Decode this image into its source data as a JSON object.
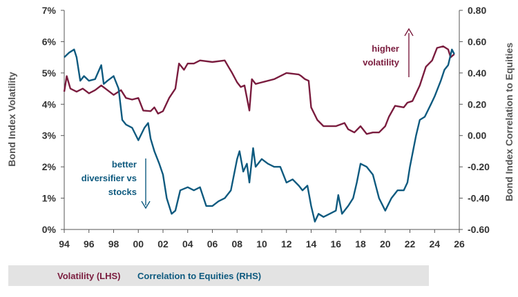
{
  "chart_data": {
    "type": "line",
    "xlabel": "",
    "ylabel_left": "Bond Index Volatility",
    "ylabel_right": "Bond Index Correlation to Equities",
    "x_ticks": [
      "94",
      "96",
      "98",
      "00",
      "02",
      "04",
      "06",
      "08",
      "10",
      "12",
      "14",
      "16",
      "18",
      "20",
      "22",
      "24",
      "26"
    ],
    "xlim": [
      1994,
      2026
    ],
    "y_left_ticks": [
      "0%",
      "1%",
      "2%",
      "3%",
      "4%",
      "5%",
      "6%",
      "7%"
    ],
    "ylim_left": [
      0,
      7
    ],
    "y_right_ticks": [
      "-0.60",
      "-0.40",
      "-0.20",
      "0.00",
      "0.20",
      "0.40",
      "0.60",
      "0.80"
    ],
    "ylim_right": [
      -0.6,
      0.8
    ],
    "grid": false,
    "series": [
      {
        "name": "Volatility (LHS)",
        "axis": "left",
        "color": "#7a1c3e",
        "points": [
          [
            1994.0,
            4.4
          ],
          [
            1994.2,
            4.9
          ],
          [
            1994.5,
            4.5
          ],
          [
            1995.0,
            4.4
          ],
          [
            1995.5,
            4.5
          ],
          [
            1996.0,
            4.35
          ],
          [
            1996.5,
            4.45
          ],
          [
            1997.0,
            4.6
          ],
          [
            1997.5,
            4.45
          ],
          [
            1998.0,
            4.3
          ],
          [
            1998.6,
            4.45
          ],
          [
            1999.0,
            4.2
          ],
          [
            1999.5,
            4.15
          ],
          [
            2000.0,
            4.2
          ],
          [
            2000.4,
            3.8
          ],
          [
            2001.0,
            3.78
          ],
          [
            2001.3,
            3.9
          ],
          [
            2001.6,
            3.7
          ],
          [
            2002.0,
            3.78
          ],
          [
            2002.5,
            4.2
          ],
          [
            2003.0,
            4.5
          ],
          [
            2003.3,
            5.3
          ],
          [
            2003.7,
            5.1
          ],
          [
            2004.0,
            5.3
          ],
          [
            2004.5,
            5.3
          ],
          [
            2005.0,
            5.4
          ],
          [
            2006.0,
            5.35
          ],
          [
            2007.0,
            5.4
          ],
          [
            2007.3,
            5.2
          ],
          [
            2007.6,
            5.0
          ],
          [
            2008.0,
            4.7
          ],
          [
            2008.3,
            4.55
          ],
          [
            2008.6,
            4.6
          ],
          [
            2009.0,
            3.8
          ],
          [
            2009.2,
            4.8
          ],
          [
            2009.5,
            4.65
          ],
          [
            2010.0,
            4.7
          ],
          [
            2011.0,
            4.8
          ],
          [
            2011.5,
            4.9
          ],
          [
            2012.0,
            5.0
          ],
          [
            2013.0,
            4.95
          ],
          [
            2013.2,
            4.9
          ],
          [
            2013.5,
            4.8
          ],
          [
            2013.8,
            4.75
          ],
          [
            2014.0,
            3.9
          ],
          [
            2014.5,
            3.5
          ],
          [
            2015.0,
            3.3
          ],
          [
            2016.0,
            3.3
          ],
          [
            2016.7,
            3.4
          ],
          [
            2017.0,
            3.2
          ],
          [
            2017.5,
            3.1
          ],
          [
            2018.0,
            3.3
          ],
          [
            2018.5,
            3.05
          ],
          [
            2019.0,
            3.1
          ],
          [
            2019.5,
            3.1
          ],
          [
            2020.0,
            3.3
          ],
          [
            2020.3,
            3.6
          ],
          [
            2020.8,
            3.95
          ],
          [
            2021.5,
            3.9
          ],
          [
            2021.8,
            4.05
          ],
          [
            2022.2,
            4.1
          ],
          [
            2022.8,
            4.6
          ],
          [
            2023.3,
            5.2
          ],
          [
            2023.8,
            5.4
          ],
          [
            2024.2,
            5.8
          ],
          [
            2024.7,
            5.85
          ],
          [
            2025.1,
            5.75
          ],
          [
            2025.3,
            5.5
          ],
          [
            2025.6,
            5.6
          ]
        ]
      },
      {
        "name": "Correlation to Equities (RHS)",
        "axis": "right",
        "color": "#0e5a7f",
        "points": [
          [
            1994.0,
            0.5
          ],
          [
            1994.4,
            0.53
          ],
          [
            1994.8,
            0.55
          ],
          [
            1995.0,
            0.5
          ],
          [
            1995.3,
            0.35
          ],
          [
            1995.6,
            0.38
          ],
          [
            1996.0,
            0.35
          ],
          [
            1996.5,
            0.36
          ],
          [
            1997.0,
            0.45
          ],
          [
            1997.2,
            0.33
          ],
          [
            1997.5,
            0.35
          ],
          [
            1998.0,
            0.38
          ],
          [
            1998.4,
            0.3
          ],
          [
            1998.7,
            0.1
          ],
          [
            1999.0,
            0.07
          ],
          [
            1999.5,
            0.05
          ],
          [
            2000.0,
            -0.03
          ],
          [
            2000.5,
            0.05
          ],
          [
            2000.8,
            0.08
          ],
          [
            2001.0,
            -0.02
          ],
          [
            2001.3,
            -0.1
          ],
          [
            2001.7,
            -0.18
          ],
          [
            2002.0,
            -0.25
          ],
          [
            2002.3,
            -0.4
          ],
          [
            2002.7,
            -0.5
          ],
          [
            2003.0,
            -0.48
          ],
          [
            2003.4,
            -0.35
          ],
          [
            2004.0,
            -0.33
          ],
          [
            2004.5,
            -0.35
          ],
          [
            2005.0,
            -0.33
          ],
          [
            2005.5,
            -0.45
          ],
          [
            2006.0,
            -0.45
          ],
          [
            2006.5,
            -0.42
          ],
          [
            2007.0,
            -0.4
          ],
          [
            2007.5,
            -0.35
          ],
          [
            2008.0,
            -0.15
          ],
          [
            2008.2,
            -0.1
          ],
          [
            2008.5,
            -0.23
          ],
          [
            2008.8,
            -0.18
          ],
          [
            2009.0,
            -0.3
          ],
          [
            2009.3,
            -0.08
          ],
          [
            2009.5,
            -0.2
          ],
          [
            2010.0,
            -0.15
          ],
          [
            2010.5,
            -0.18
          ],
          [
            2011.0,
            -0.2
          ],
          [
            2011.5,
            -0.2
          ],
          [
            2012.0,
            -0.3
          ],
          [
            2012.5,
            -0.28
          ],
          [
            2013.0,
            -0.32
          ],
          [
            2013.3,
            -0.35
          ],
          [
            2013.7,
            -0.32
          ],
          [
            2014.0,
            -0.45
          ],
          [
            2014.3,
            -0.55
          ],
          [
            2014.6,
            -0.5
          ],
          [
            2015.0,
            -0.52
          ],
          [
            2015.5,
            -0.5
          ],
          [
            2016.0,
            -0.48
          ],
          [
            2016.2,
            -0.38
          ],
          [
            2016.5,
            -0.5
          ],
          [
            2017.0,
            -0.45
          ],
          [
            2017.4,
            -0.4
          ],
          [
            2017.7,
            -0.3
          ],
          [
            2018.0,
            -0.18
          ],
          [
            2018.5,
            -0.2
          ],
          [
            2019.0,
            -0.25
          ],
          [
            2019.5,
            -0.4
          ],
          [
            2020.0,
            -0.48
          ],
          [
            2020.5,
            -0.4
          ],
          [
            2021.0,
            -0.35
          ],
          [
            2021.5,
            -0.35
          ],
          [
            2021.8,
            -0.3
          ],
          [
            2022.0,
            -0.2
          ],
          [
            2022.5,
            0.0
          ],
          [
            2022.8,
            0.1
          ],
          [
            2023.2,
            0.12
          ],
          [
            2023.7,
            0.2
          ],
          [
            2024.0,
            0.25
          ],
          [
            2024.5,
            0.35
          ],
          [
            2024.8,
            0.42
          ],
          [
            2025.1,
            0.45
          ],
          [
            2025.4,
            0.55
          ],
          [
            2025.6,
            0.52
          ]
        ]
      }
    ],
    "annotations": [
      {
        "id": "higher",
        "lines": [
          "higher",
          "volatility"
        ],
        "arrow": "up",
        "color": "#7a1c3e"
      },
      {
        "id": "better",
        "lines": [
          "better",
          "diversifier vs",
          "stocks"
        ],
        "arrow": "down",
        "color": "#0e5a7f"
      }
    ]
  },
  "legend": {
    "items": [
      {
        "label": "Volatility (LHS)",
        "color": "#7a1c3e"
      },
      {
        "label": "Correlation to Equities (RHS)",
        "color": "#0e5a7f"
      }
    ]
  }
}
